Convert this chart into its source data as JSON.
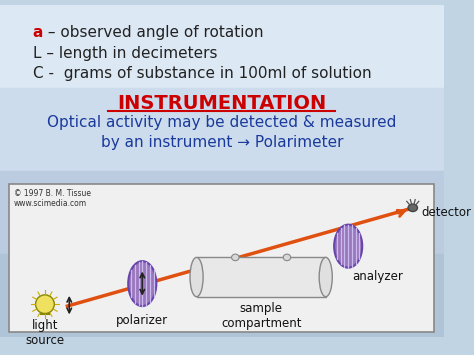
{
  "title_text": "INSTRUMENTATION",
  "title_color": "#cc0000",
  "subtitle_text": "Optical activity may be detected & measured\nby an instrument → Polarimeter",
  "subtitle_color": "#1a3a9c",
  "line1_a": "a",
  "line1_rest": " – observed angle of rotation",
  "line2": "L – length in decimeters",
  "line3": "C -  grams of substance in 100ml of solution",
  "text_color_dark": "#222222",
  "text_color_red": "#cc0000",
  "arrow_color": "#e05010",
  "copyright_text": "© 1997 B. M. Tissue\nwww.scimedia.com",
  "label_light_source": "light\nsource",
  "label_polarizer": "polarizer",
  "label_sample": "sample\ncompartment",
  "label_analyzer": "analyzer",
  "label_detector": "detector",
  "grad_colors": [
    "#dce8f4",
    "#ccdcec",
    "#bccce0",
    "#b0c4d8"
  ]
}
